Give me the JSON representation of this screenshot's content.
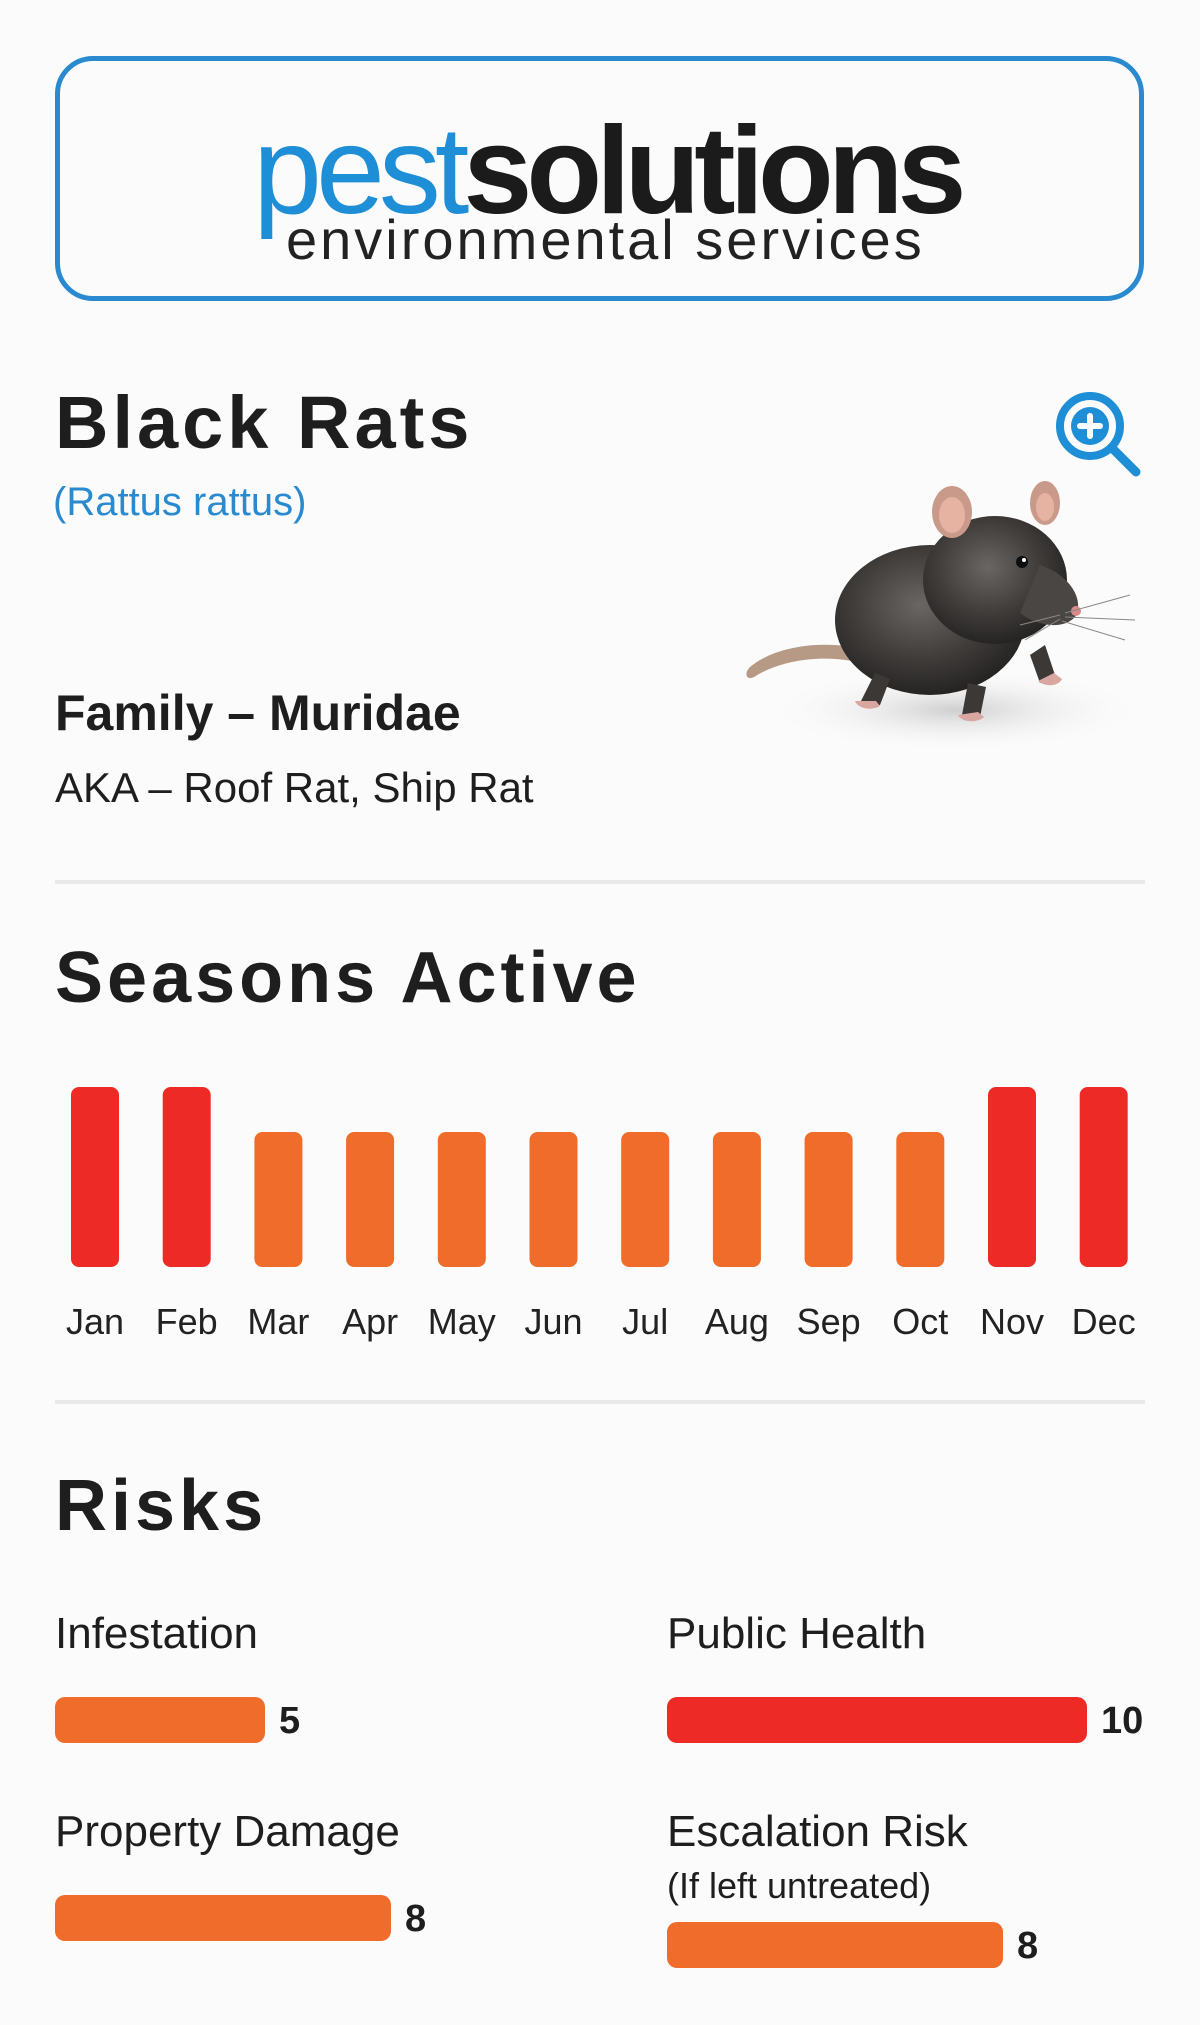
{
  "logo": {
    "brand_part1": "pest",
    "brand_part2": "solutions",
    "tagline": "environmental services",
    "colors": {
      "pest": "#1e8fd6",
      "solutions": "#1b1b1b",
      "border": "#2a8ad0"
    }
  },
  "species": {
    "common_name": "Black Rats",
    "scientific_name": "(Rattus rattus)",
    "family": "Family – Muridae",
    "aka": "AKA – Roof Rat, Ship Rat",
    "zoom_icon": "zoom-in-icon",
    "image": "black-rat-photo"
  },
  "seasons": {
    "title": "Seasons Active",
    "colors": {
      "high": "#ee2a26",
      "medium": "#ef6c2a"
    }
  },
  "chart_data": {
    "type": "bar",
    "categories": [
      "Jan",
      "Feb",
      "Mar",
      "Apr",
      "May",
      "Jun",
      "Jul",
      "Aug",
      "Sep",
      "Oct",
      "Nov",
      "Dec"
    ],
    "levels": [
      "high",
      "high",
      "medium",
      "medium",
      "medium",
      "medium",
      "medium",
      "medium",
      "medium",
      "medium",
      "high",
      "high"
    ],
    "values": [
      2,
      2,
      1.5,
      1.5,
      1.5,
      1.5,
      1.5,
      1.5,
      1.5,
      1.5,
      2,
      2
    ],
    "ylim": [
      0,
      2
    ],
    "grid": false
  },
  "risks": {
    "title": "Risks",
    "max": 10,
    "items": [
      {
        "label": "Infestation",
        "value": "5",
        "level": 5,
        "color": "#ef6c2a"
      },
      {
        "label": "Public Health",
        "value": "10",
        "level": 10,
        "color": "#ee2a26"
      },
      {
        "label": "Property Damage",
        "value": "8",
        "level": 8,
        "color": "#ef6c2a"
      },
      {
        "label": "Escalation Risk",
        "note": "(If left untreated)",
        "value": "8",
        "level": 8,
        "color": "#ef6c2a"
      }
    ]
  }
}
